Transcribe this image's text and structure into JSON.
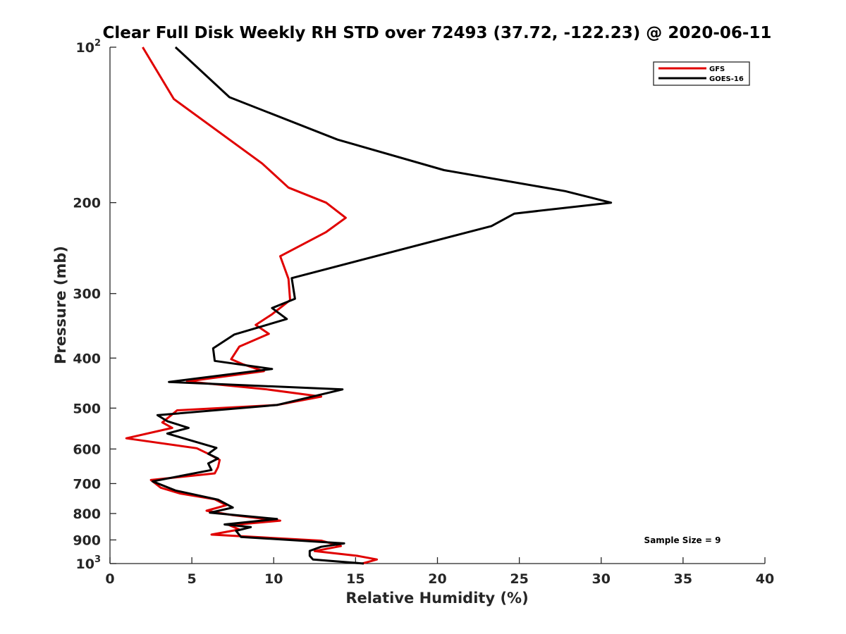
{
  "chart_data": {
    "type": "line",
    "title": "Clear Full Disk Weekly RH STD over 72493 (37.72, -122.23) @ 2020-06-11",
    "xlabel": "Relative Humidity (%)",
    "ylabel": "Pressure (mb)",
    "xlim": [
      0,
      40
    ],
    "ylim": [
      100,
      1000
    ],
    "yscale": "log",
    "y_inverted": true,
    "x_ticks": [
      "0",
      "5",
      "10",
      "15",
      "20",
      "25",
      "30",
      "35",
      "40"
    ],
    "y_ticks": [
      {
        "value": 100,
        "base": "10",
        "exp": "2"
      },
      {
        "value": 200,
        "label": "200"
      },
      {
        "value": 300,
        "label": "300"
      },
      {
        "value": 400,
        "label": "400"
      },
      {
        "value": 500,
        "label": "500"
      },
      {
        "value": 600,
        "label": "600"
      },
      {
        "value": 700,
        "label": "700"
      },
      {
        "value": 800,
        "label": "800"
      },
      {
        "value": 900,
        "label": "900"
      },
      {
        "value": 1000,
        "base": "10",
        "exp": "3"
      }
    ],
    "legend_position": "top-right",
    "grid": false,
    "annotation": "Sample Size = 9",
    "series": [
      {
        "name": "GFS",
        "color": "#e00000",
        "points": [
          [
            2.0,
            100
          ],
          [
            3.9,
            126
          ],
          [
            9.3,
            168
          ],
          [
            10.9,
            187
          ],
          [
            13.2,
            200
          ],
          [
            14.4,
            214
          ],
          [
            13.2,
            228
          ],
          [
            10.4,
            254
          ],
          [
            10.9,
            281
          ],
          [
            11.0,
            309
          ],
          [
            9.9,
            329
          ],
          [
            8.9,
            345
          ],
          [
            9.7,
            359
          ],
          [
            7.9,
            380
          ],
          [
            7.4,
            402
          ],
          [
            8.1,
            411
          ],
          [
            9.4,
            424
          ],
          [
            4.7,
            444
          ],
          [
            9.6,
            460
          ],
          [
            12.9,
            475
          ],
          [
            10.2,
            493
          ],
          [
            4.1,
            505
          ],
          [
            3.2,
            533
          ],
          [
            3.8,
            546
          ],
          [
            1.0,
            572
          ],
          [
            5.3,
            598
          ],
          [
            6.0,
            613
          ],
          [
            6.7,
            630
          ],
          [
            6.6,
            650
          ],
          [
            6.4,
            669
          ],
          [
            2.5,
            689
          ],
          [
            3.1,
            713
          ],
          [
            4.3,
            732
          ],
          [
            6.4,
            751
          ],
          [
            7.1,
            771
          ],
          [
            5.9,
            790
          ],
          [
            7.5,
            806
          ],
          [
            10.4,
            826
          ],
          [
            7.3,
            843
          ],
          [
            7.9,
            859
          ],
          [
            6.2,
            879
          ],
          [
            12.9,
            903
          ],
          [
            14.1,
            925
          ],
          [
            12.5,
            946
          ],
          [
            15.1,
            966
          ],
          [
            16.3,
            982
          ],
          [
            15.4,
            1000
          ]
        ]
      },
      {
        "name": "GOES-16",
        "color": "#000000",
        "points": [
          [
            4.0,
            100
          ],
          [
            7.3,
            125
          ],
          [
            13.9,
            151
          ],
          [
            20.4,
            173
          ],
          [
            27.8,
            190
          ],
          [
            30.6,
            200
          ],
          [
            24.7,
            210
          ],
          [
            23.3,
            222
          ],
          [
            11.1,
            280
          ],
          [
            11.3,
            307
          ],
          [
            9.9,
            320
          ],
          [
            10.8,
            336
          ],
          [
            7.6,
            360
          ],
          [
            6.3,
            383
          ],
          [
            6.4,
            405
          ],
          [
            9.9,
            420
          ],
          [
            3.6,
            445
          ],
          [
            14.2,
            460
          ],
          [
            10.2,
            493
          ],
          [
            2.9,
            516
          ],
          [
            3.5,
            530
          ],
          [
            4.8,
            546
          ],
          [
            3.5,
            560
          ],
          [
            6.5,
            597
          ],
          [
            6.0,
            613
          ],
          [
            6.6,
            626
          ],
          [
            6.0,
            640
          ],
          [
            6.2,
            659
          ],
          [
            2.6,
            693
          ],
          [
            4.0,
            722
          ],
          [
            6.6,
            752
          ],
          [
            7.5,
            779
          ],
          [
            6.1,
            797
          ],
          [
            10.2,
            820
          ],
          [
            7.0,
            840
          ],
          [
            8.6,
            850
          ],
          [
            7.7,
            864
          ],
          [
            8.0,
            888
          ],
          [
            14.3,
            914
          ],
          [
            12.9,
            928
          ],
          [
            12.2,
            945
          ],
          [
            12.2,
            966
          ],
          [
            12.4,
            982
          ],
          [
            15.5,
            1000
          ]
        ]
      }
    ]
  }
}
